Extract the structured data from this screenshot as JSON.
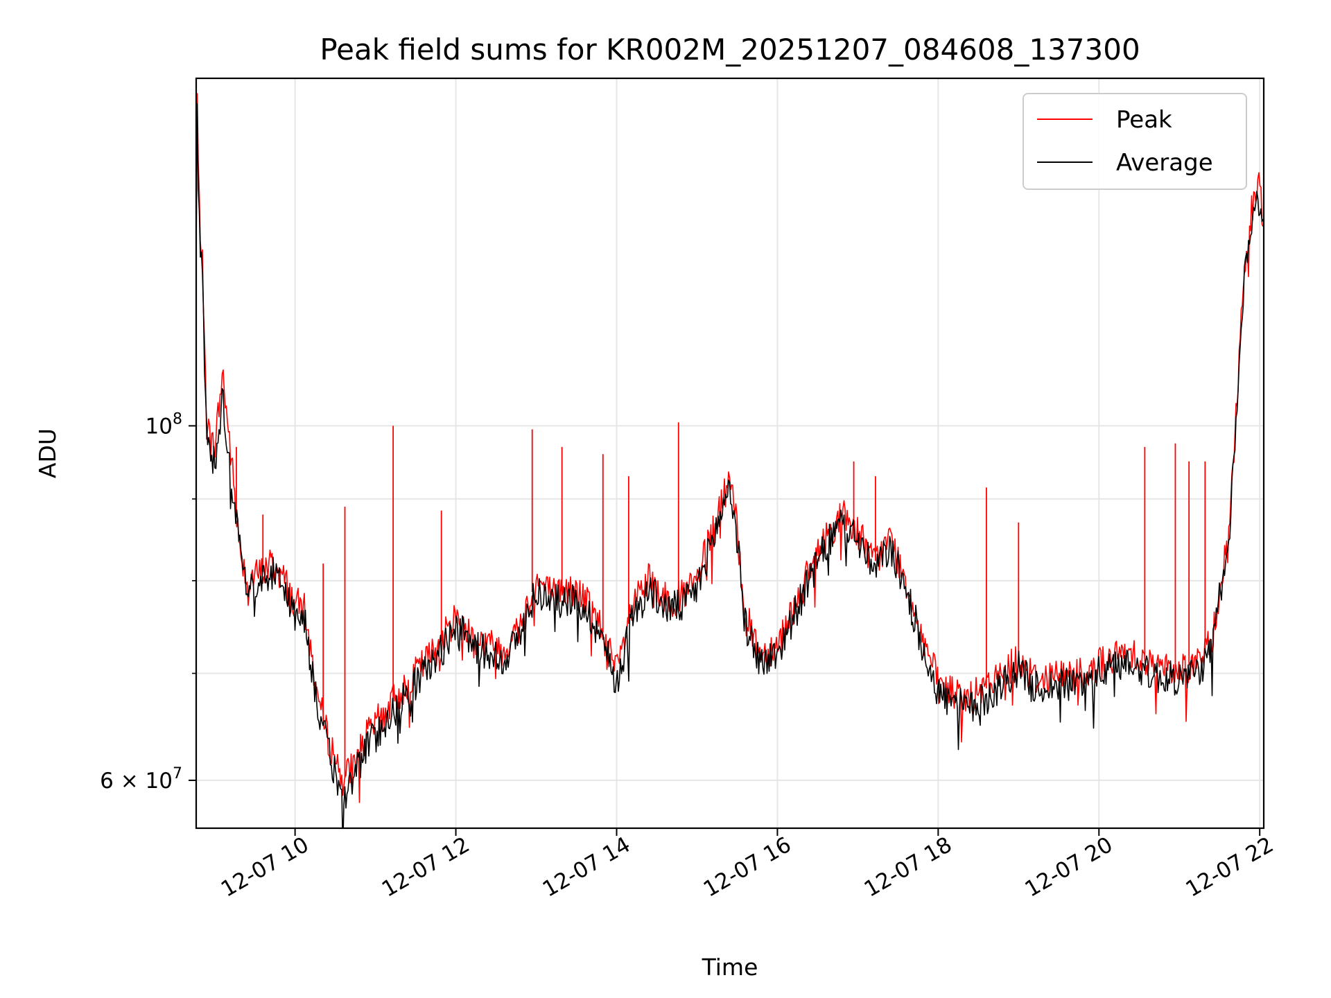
{
  "chart_data": {
    "type": "line",
    "title": "Peak field sums for KR002M_20251207_084608_137300",
    "xlabel": "Time",
    "ylabel": "ADU",
    "x_unit": "hours (2025-12-07)",
    "xlim": [
      8.77,
      22.05
    ],
    "ylim": [
      56000000,
      165000000
    ],
    "yscale": "log",
    "grid": true,
    "legend_position": "upper-right",
    "x_ticks": [
      {
        "value": 10,
        "label": "12-07 10"
      },
      {
        "value": 12,
        "label": "12-07 12"
      },
      {
        "value": 14,
        "label": "12-07 14"
      },
      {
        "value": 16,
        "label": "12-07 16"
      },
      {
        "value": 18,
        "label": "12-07 18"
      },
      {
        "value": 20,
        "label": "12-07 20"
      },
      {
        "value": 22,
        "label": "12-07 22"
      }
    ],
    "y_major_ticks": [
      {
        "value": 100000000,
        "base": "10",
        "exp": "8"
      },
      {
        "value": 60000000,
        "base": "6 × 10",
        "exp": "7"
      }
    ],
    "y_minor_ticks": [
      70000000,
      80000000,
      90000000
    ],
    "series": [
      {
        "name": "Peak",
        "color": "#ff0000",
        "x": [
          8.77,
          8.78,
          8.8,
          8.85,
          8.9,
          8.95,
          9.0,
          9.1,
          9.2,
          9.3,
          9.4,
          9.5,
          9.6,
          9.7,
          9.8,
          9.9,
          10.0,
          10.1,
          10.2,
          10.3,
          10.4,
          10.5,
          10.6,
          10.7,
          10.8,
          10.9,
          11.0,
          11.2,
          11.4,
          11.6,
          11.8,
          12.0,
          12.2,
          12.4,
          12.6,
          12.8,
          13.0,
          13.2,
          13.4,
          13.6,
          13.8,
          14.0,
          14.2,
          14.4,
          14.6,
          14.8,
          15.0,
          15.2,
          15.3,
          15.4,
          15.5,
          15.6,
          15.8,
          16.0,
          16.2,
          16.4,
          16.6,
          16.8,
          17.0,
          17.2,
          17.4,
          17.6,
          17.8,
          18.0,
          18.2,
          18.4,
          18.6,
          18.8,
          19.0,
          19.2,
          19.4,
          19.6,
          19.8,
          20.0,
          20.2,
          20.4,
          20.6,
          20.8,
          21.0,
          21.2,
          21.4,
          21.5,
          21.6,
          21.7,
          21.8,
          21.9,
          22.0,
          22.05
        ],
        "y": [
          130000000,
          165000000,
          140000000,
          125000000,
          100000000,
          98000000,
          97000000,
          108000000,
          96000000,
          85000000,
          80000000,
          80500000,
          81000000,
          82000000,
          81000000,
          79500000,
          77000000,
          77500000,
          72000000,
          67000000,
          64000000,
          62000000,
          60000000,
          61000000,
          62500000,
          64000000,
          65000000,
          67000000,
          69000000,
          71000000,
          73000000,
          76000000,
          74000000,
          73000000,
          72500000,
          75000000,
          80000000,
          78500000,
          79000000,
          78000000,
          75000000,
          70000000,
          77000000,
          80000000,
          78000000,
          78000000,
          80000000,
          86000000,
          89000000,
          93000000,
          86000000,
          76000000,
          72000000,
          73000000,
          77000000,
          81000000,
          85000000,
          88000000,
          86000000,
          82000000,
          85000000,
          80000000,
          74000000,
          69000000,
          68000000,
          67500000,
          68500000,
          70000000,
          71500000,
          69500000,
          69800000,
          69800000,
          70300000,
          71000000,
          71500000,
          72500000,
          71000000,
          70500000,
          70500000,
          71000000,
          73000000,
          79000000,
          84000000,
          100000000,
          125000000,
          136000000,
          141000000,
          134000000
        ]
      },
      {
        "name": "Average",
        "color": "#000000",
        "x": [
          8.77,
          8.78,
          8.8,
          8.85,
          8.9,
          8.95,
          9.0,
          9.1,
          9.2,
          9.3,
          9.4,
          9.5,
          9.6,
          9.7,
          9.8,
          9.9,
          10.0,
          10.1,
          10.2,
          10.3,
          10.4,
          10.5,
          10.6,
          10.7,
          10.8,
          10.9,
          11.0,
          11.2,
          11.4,
          11.6,
          11.8,
          12.0,
          12.2,
          12.4,
          12.6,
          12.8,
          13.0,
          13.2,
          13.4,
          13.6,
          13.8,
          14.0,
          14.2,
          14.4,
          14.6,
          14.8,
          15.0,
          15.2,
          15.3,
          15.4,
          15.5,
          15.6,
          15.8,
          16.0,
          16.2,
          16.4,
          16.6,
          16.8,
          17.0,
          17.2,
          17.4,
          17.6,
          17.8,
          18.0,
          18.2,
          18.4,
          18.6,
          18.8,
          19.0,
          19.2,
          19.4,
          19.6,
          19.8,
          20.0,
          20.2,
          20.4,
          20.6,
          20.8,
          21.0,
          21.2,
          21.4,
          21.5,
          21.6,
          21.7,
          21.8,
          21.9,
          22.0,
          22.05
        ],
        "y": [
          128000000,
          160000000,
          137000000,
          122000000,
          99000000,
          96500000,
          95000000,
          104000000,
          94000000,
          84000000,
          79000000,
          79500000,
          80000000,
          81000000,
          80000000,
          78500000,
          76000000,
          76500000,
          71000000,
          66000000,
          63000000,
          60500000,
          58000000,
          60000000,
          61500000,
          63000000,
          64000000,
          66000000,
          68000000,
          70000000,
          72000000,
          75000000,
          73000000,
          72000000,
          71500000,
          74000000,
          79000000,
          77500000,
          78000000,
          77000000,
          74000000,
          69000000,
          76000000,
          79000000,
          77000000,
          77000000,
          79000000,
          85000000,
          88000000,
          92000000,
          85000000,
          75000000,
          71000000,
          72000000,
          76000000,
          80000000,
          84000000,
          87000000,
          85000000,
          81000000,
          84000000,
          79000000,
          73000000,
          68000000,
          67000000,
          66500000,
          67500000,
          69000000,
          70500000,
          68500000,
          68800000,
          68800000,
          69300000,
          70000000,
          70500000,
          71500000,
          70000000,
          69500000,
          69500000,
          70000000,
          72000000,
          78000000,
          83000000,
          98000000,
          123000000,
          134000000,
          139000000,
          131000000
        ]
      }
    ],
    "peak_spikes": [
      {
        "x": 9.27,
        "y": 97000000
      },
      {
        "x": 9.6,
        "y": 88000000
      },
      {
        "x": 10.35,
        "y": 82000000
      },
      {
        "x": 10.62,
        "y": 89000000
      },
      {
        "x": 11.22,
        "y": 100000000
      },
      {
        "x": 11.82,
        "y": 88500000
      },
      {
        "x": 12.95,
        "y": 99500000
      },
      {
        "x": 13.32,
        "y": 97000000
      },
      {
        "x": 13.83,
        "y": 96000000
      },
      {
        "x": 14.15,
        "y": 93000000
      },
      {
        "x": 14.77,
        "y": 100500000
      },
      {
        "x": 16.95,
        "y": 95000000
      },
      {
        "x": 17.22,
        "y": 93000000
      },
      {
        "x": 18.6,
        "y": 91500000
      },
      {
        "x": 19.0,
        "y": 87000000
      },
      {
        "x": 20.57,
        "y": 97000000
      },
      {
        "x": 20.95,
        "y": 97500000
      },
      {
        "x": 21.12,
        "y": 95000000
      },
      {
        "x": 21.32,
        "y": 95000000
      }
    ]
  }
}
